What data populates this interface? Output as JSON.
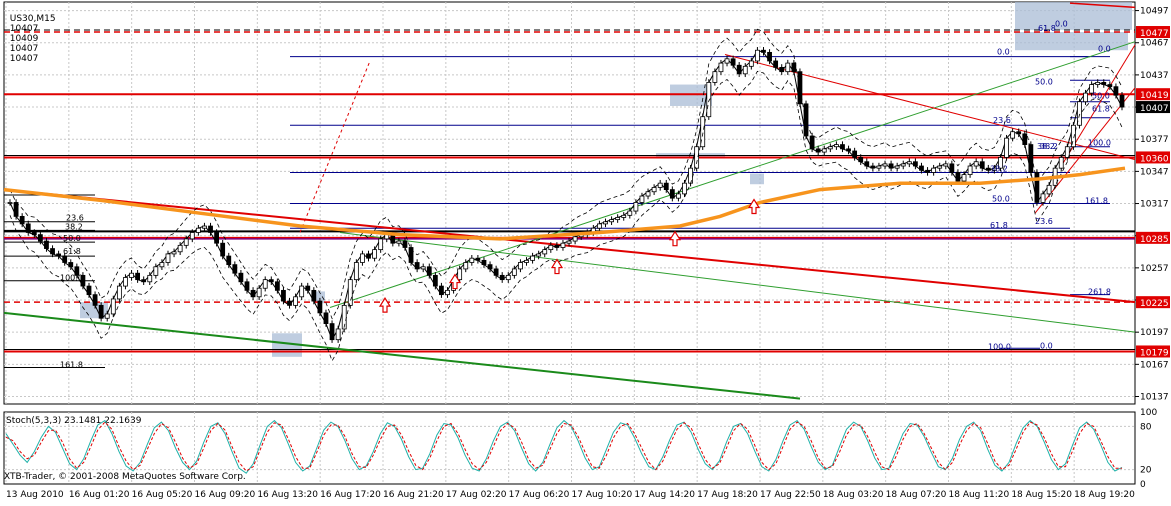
{
  "header": {
    "symbol": "US30,M15",
    "open": "10407",
    "high": "10409",
    "low": "10407",
    "close": "10407"
  },
  "copyright": "XTB-Trader, © 2001-2008 MetaQuotes Software Corp.",
  "chart_data": [
    {
      "type": "line",
      "subtype": "candlestick",
      "grid": true,
      "ylim": [
        10130,
        10505
      ],
      "y_ticks": [
        10497,
        10467,
        10437,
        10407,
        10377,
        10347,
        10317,
        10287,
        10257,
        10227,
        10197,
        10167,
        10137
      ],
      "x_tick_labels": [
        "13 Aug 2010",
        "16 Aug 01:20",
        "16 Aug 05:20",
        "16 Aug 09:20",
        "16 Aug 13:20",
        "16 Aug 17:20",
        "16 Aug 21:20",
        "17 Aug 02:20",
        "17 Aug 06:20",
        "17 Aug 10:20",
        "17 Aug 14:20",
        "17 Aug 18:20",
        "17 Aug 22:50",
        "18 Aug 03:20",
        "18 Aug 07:20",
        "18 Aug 11:20",
        "18 Aug 15:20",
        "18 Aug 19:20"
      ],
      "price_levels": [
        {
          "label": "10477",
          "value": 10477,
          "color": "#e00000",
          "style": "dashed"
        },
        {
          "label": "10419",
          "value": 10419,
          "color": "#e00000",
          "style": "solid"
        },
        {
          "label": "10407",
          "value": 10407,
          "color": "#000000",
          "style": "current"
        },
        {
          "label": "10360",
          "value": 10360,
          "color": "#e00000",
          "style": "solid"
        },
        {
          "label": "10285",
          "value": 10285,
          "color": "#e00000",
          "style": "solid"
        },
        {
          "label": "10225",
          "value": 10225,
          "color": "#e00000",
          "style": "dashed"
        },
        {
          "label": "10179",
          "value": 10179,
          "color": "#e00000",
          "style": "solid"
        }
      ],
      "close_series": [
        10318,
        10305,
        10298,
        10290,
        10288,
        10282,
        10275,
        10270,
        10268,
        10262,
        10258,
        10250,
        10240,
        10232,
        10222,
        10210,
        10214,
        10228,
        10240,
        10248,
        10252,
        10246,
        10244,
        10250,
        10258,
        10262,
        10270,
        10272,
        10278,
        10284,
        10290,
        10294,
        10296,
        10290,
        10280,
        10268,
        10260,
        10252,
        10244,
        10236,
        10230,
        10238,
        10246,
        10244,
        10236,
        10226,
        10222,
        10230,
        10240,
        10236,
        10226,
        10215,
        10205,
        10190,
        10200,
        10222,
        10246,
        10262,
        10270,
        10266,
        10274,
        10284,
        10288,
        10280,
        10282,
        10276,
        10262,
        10256,
        10258,
        10250,
        10240,
        10232,
        10236,
        10246,
        10256,
        10262,
        10266,
        10264,
        10260,
        10256,
        10250,
        10246,
        10250,
        10256,
        10262,
        10264,
        10268,
        10270,
        10274,
        10278,
        10276,
        10280,
        10282,
        10286,
        10288,
        10290,
        10294,
        10298,
        10300,
        10302,
        10304,
        10306,
        10310,
        10318,
        10324,
        10328,
        10332,
        10336,
        10330,
        10322,
        10326,
        10336,
        10350,
        10370,
        10398,
        10430,
        10440,
        10448,
        10452,
        10446,
        10438,
        10445,
        10450,
        10460,
        10458,
        10450,
        10444,
        10440,
        10448,
        10440,
        10410,
        10380,
        10368,
        10365,
        10368,
        10370,
        10372,
        10368,
        10366,
        10360,
        10356,
        10352,
        10350,
        10352,
        10354,
        10350,
        10352,
        10354,
        10356,
        10352,
        10348,
        10346,
        10350,
        10352,
        10354,
        10346,
        10338,
        10344,
        10352,
        10356,
        10350,
        10348,
        10350,
        10360,
        10378,
        10384,
        10382,
        10372,
        10346,
        10318,
        10326,
        10334,
        10350,
        10360,
        10370,
        10390,
        10412,
        10420,
        10428,
        10430,
        10428,
        10426,
        10418,
        10407
      ],
      "annotations": [
        "0.0",
        "61.8",
        "0.0",
        "50.0",
        "38.2",
        "61.8",
        "50.0",
        "23.6",
        "38.2",
        "100.0",
        "38.2",
        "50.0",
        "161.8",
        "23.6",
        "61.8",
        "261.8",
        "100.0",
        "0.0",
        "0.0",
        "23.6",
        "38.2",
        "50.0",
        "61.8",
        "100.0",
        "161.8"
      ]
    },
    {
      "type": "line",
      "title": "Stoch(5,3,3) 23.1481 22.1639",
      "ylim": [
        0,
        100
      ],
      "y_ticks": [
        100,
        80,
        20,
        0
      ],
      "series": [
        {
          "name": "",
          "color": "#20b2aa",
          "values": [
            70,
            55,
            40,
            30,
            45,
            65,
            80,
            72,
            50,
            28,
            20,
            35,
            60,
            82,
            88,
            70,
            45,
            25,
            18,
            30,
            55,
            78,
            86,
            74,
            50,
            30,
            20,
            32,
            58,
            80,
            85,
            70,
            45,
            22,
            15,
            28,
            55,
            80,
            88,
            78,
            55,
            30,
            18,
            25,
            50,
            75,
            86,
            80,
            60,
            35,
            20,
            25,
            45,
            70,
            85,
            80,
            62,
            38,
            20,
            22,
            42,
            68,
            84,
            82,
            64,
            40,
            22,
            18,
            35,
            60,
            80,
            86,
            74,
            50,
            28,
            18,
            30,
            55,
            78,
            88,
            80,
            60,
            36,
            20,
            24,
            48,
            72,
            85,
            82,
            64,
            42,
            24,
            20,
            38,
            62,
            82,
            86,
            72,
            48,
            28,
            20,
            32,
            58,
            80,
            84,
            70,
            46,
            24,
            18,
            34,
            60,
            82,
            88,
            76,
            52,
            30,
            20,
            26,
            52,
            76,
            86,
            80,
            60,
            36,
            20,
            22,
            46,
            70,
            84,
            82,
            66,
            44,
            24,
            20,
            36,
            62,
            80,
            86,
            74,
            48,
            26,
            18,
            30,
            56,
            78,
            88,
            80,
            58,
            34,
            20,
            28,
            54,
            78,
            86,
            76,
            54,
            30,
            18,
            23
          ]
        },
        {
          "name": "",
          "color": "#e00000",
          "values": [
            65,
            60,
            45,
            35,
            40,
            58,
            74,
            75,
            58,
            35,
            22,
            30,
            52,
            75,
            86,
            76,
            52,
            32,
            20,
            26,
            48,
            70,
            84,
            78,
            58,
            36,
            22,
            28,
            50,
            74,
            84,
            75,
            52,
            30,
            18,
            24,
            48,
            72,
            85,
            82,
            62,
            38,
            22,
            22,
            44,
            68,
            82,
            82,
            66,
            42,
            24,
            23,
            40,
            62,
            80,
            82,
            68,
            46,
            26,
            20,
            36,
            60,
            80,
            84,
            70,
            48,
            28,
            20,
            30,
            52,
            74,
            84,
            78,
            58,
            34,
            22,
            26,
            48,
            70,
            84,
            82,
            66,
            44,
            24,
            22,
            40,
            64,
            80,
            84,
            70,
            50,
            30,
            20,
            32,
            55,
            76,
            85,
            78,
            56,
            34,
            22,
            28,
            50,
            74,
            84,
            76,
            54,
            30,
            20,
            28,
            52,
            76,
            86,
            80,
            60,
            36,
            22,
            24,
            44,
            68,
            82,
            82,
            66,
            44,
            24,
            20,
            38,
            62,
            80,
            84,
            70,
            50,
            30,
            20,
            30,
            54,
            74,
            84,
            78,
            56,
            32,
            20,
            26,
            48,
            72,
            86,
            82,
            64,
            42,
            24,
            24,
            46,
            70,
            84,
            80,
            60,
            38,
            22,
            22
          ]
        }
      ]
    }
  ],
  "icons": {
    "up_arrow": "up-arrow-icon"
  },
  "colors": {
    "resistance": "#e00000",
    "trend_green": "#2e9e2e",
    "ma_orange": "#f7941d",
    "fib_blue": "#00008b",
    "bollinger": "#000000",
    "zone_fill": "#a9bcd6"
  }
}
